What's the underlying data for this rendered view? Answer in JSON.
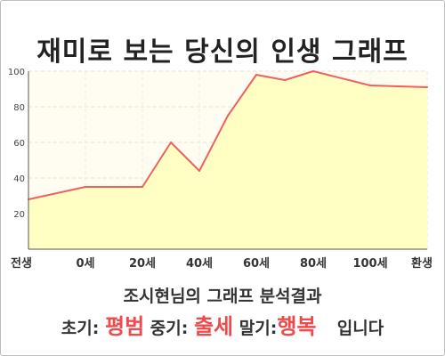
{
  "header": {
    "title": "재미로 보는 당신의 인생 그래프"
  },
  "caption": "조시현님의 그래프 분석결과",
  "summary": {
    "early_label": "초기:",
    "early_value": "평범",
    "mid_label": "중기:",
    "mid_value": "출세",
    "late_label": "말기:",
    "late_value": "행복",
    "suffix": "입니다"
  },
  "colors": {
    "line": "#f06060",
    "fill": "#ffffc4",
    "accent": "#f04b4b"
  },
  "chart_data": {
    "type": "area",
    "title": "재미로 보는 당신의 인생 그래프",
    "xlabel": "",
    "ylabel": "",
    "ylim": [
      0,
      100
    ],
    "yticks": [
      20,
      40,
      60,
      80,
      100
    ],
    "x_tick_labels": [
      "전생",
      "0세",
      "20세",
      "40세",
      "60세",
      "80세",
      "100세",
      "환생"
    ],
    "x_tick_ages": [
      -20,
      0,
      20,
      40,
      60,
      80,
      100,
      120
    ],
    "grid": true,
    "series": [
      {
        "points": [
          {
            "age": -20,
            "value": 28
          },
          {
            "age": 0,
            "value": 35
          },
          {
            "age": 20,
            "value": 35
          },
          {
            "age": 30,
            "value": 60
          },
          {
            "age": 40,
            "value": 44
          },
          {
            "age": 50,
            "value": 75
          },
          {
            "age": 60,
            "value": 98
          },
          {
            "age": 70,
            "value": 95
          },
          {
            "age": 80,
            "value": 100
          },
          {
            "age": 100,
            "value": 92
          },
          {
            "age": 110,
            "value": 91.5
          },
          {
            "age": 120,
            "value": 91
          }
        ]
      }
    ]
  }
}
